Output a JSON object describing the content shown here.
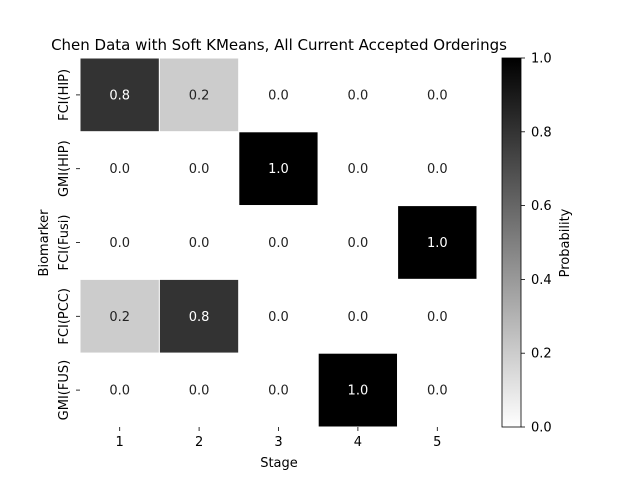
{
  "chart_data": {
    "type": "heatmap",
    "title": "Chen Data with Soft KMeans, All Current Accepted Orderings",
    "xlabel": "Stage",
    "ylabel": "Biomarker",
    "x_categories": [
      "1",
      "2",
      "3",
      "4",
      "5"
    ],
    "y_categories": [
      "FCI(HIP)",
      "GMI(HIP)",
      "FCI(Fusi)",
      "FCI(PCC)",
      "GMI(FUS)"
    ],
    "values": [
      [
        0.8,
        0.2,
        0.0,
        0.0,
        0.0
      ],
      [
        0.0,
        0.0,
        1.0,
        0.0,
        0.0
      ],
      [
        0.0,
        0.0,
        0.0,
        0.0,
        1.0
      ],
      [
        0.2,
        0.8,
        0.0,
        0.0,
        0.0
      ],
      [
        0.0,
        0.0,
        0.0,
        1.0,
        0.0
      ]
    ],
    "colorbar": {
      "label": "Probability",
      "range": [
        0.0,
        1.0
      ],
      "ticks": [
        "0.0",
        "0.2",
        "0.4",
        "0.6",
        "0.8",
        "1.0"
      ],
      "colormap": "Greys",
      "low_color": "#ffffff",
      "high_color": "#000000"
    },
    "grid": false
  }
}
